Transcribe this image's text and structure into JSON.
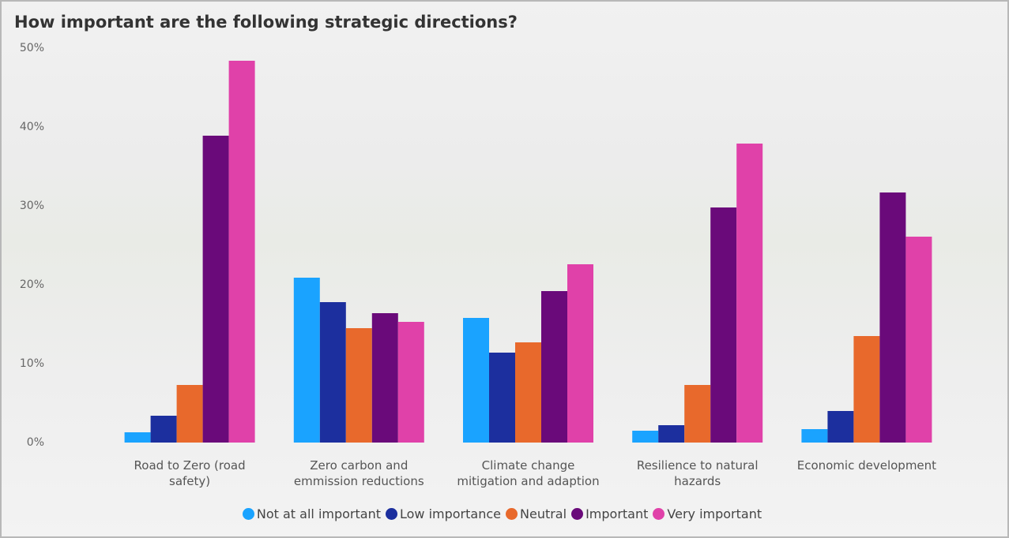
{
  "chart_data": {
    "type": "bar",
    "title": "How important are the following strategic directions?",
    "categories": [
      "Road to Zero (road safety)",
      "Zero carbon and emmission reductions",
      "Climate change mitigation and adaption",
      "Resilience to natural hazards",
      "Economic development"
    ],
    "series": [
      {
        "name": "Not at all important",
        "color": "#1aa3ff",
        "values": [
          1.3,
          20.9,
          15.8,
          1.5,
          1.7
        ]
      },
      {
        "name": "Low importance",
        "color": "#1c2f9e",
        "values": [
          3.4,
          17.8,
          11.4,
          2.2,
          4.0
        ]
      },
      {
        "name": "Neutral",
        "color": "#e8692c",
        "values": [
          7.3,
          14.5,
          12.7,
          7.3,
          13.5
        ]
      },
      {
        "name": "Important",
        "color": "#6a0a7a",
        "values": [
          38.9,
          16.4,
          19.2,
          29.8,
          31.7
        ]
      },
      {
        "name": "Very important",
        "color": "#e041a9",
        "values": [
          48.4,
          15.3,
          22.6,
          37.9,
          26.1
        ]
      }
    ],
    "ylim": [
      0,
      50
    ],
    "yticks": [
      {
        "value": 0,
        "label": "0%"
      },
      {
        "value": 10,
        "label": "10%"
      },
      {
        "value": 20,
        "label": "20%"
      },
      {
        "value": 30,
        "label": "30%"
      },
      {
        "value": 40,
        "label": "40%"
      },
      {
        "value": 50,
        "label": "50%"
      }
    ],
    "grid": false
  }
}
